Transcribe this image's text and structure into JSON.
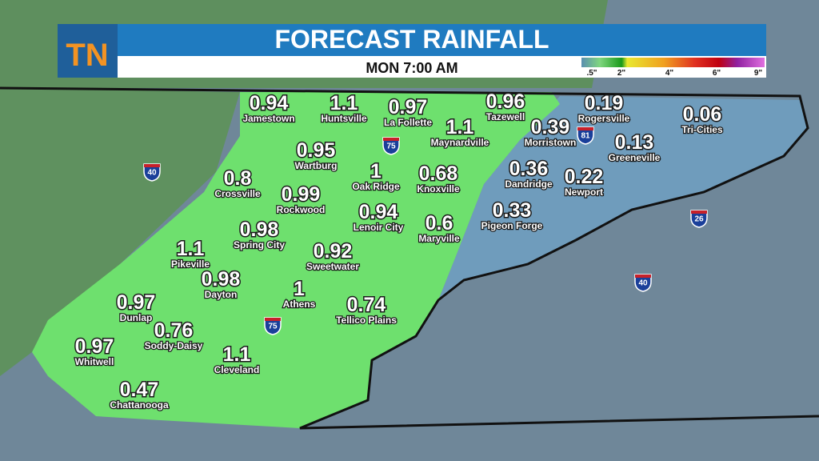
{
  "header": {
    "logo": "TN",
    "title": "FORECAST RAINFALL",
    "subtitle": "MON 7:00 AM"
  },
  "legend": {
    "labels": [
      ".5\"",
      "2\"",
      "4\"",
      "6\"",
      "9\""
    ]
  },
  "cities": [
    {
      "name": "Jamestown",
      "value": 0.94
    },
    {
      "name": "Huntsville",
      "value": 1.1
    },
    {
      "name": "La Follette",
      "value": 0.97
    },
    {
      "name": "Tazewell",
      "value": 0.96
    },
    {
      "name": "Rogersville",
      "value": 0.19
    },
    {
      "name": "Tri-Cities",
      "value": 0.06
    },
    {
      "name": "Maynardville",
      "value": 1.1
    },
    {
      "name": "Morristown",
      "value": 0.39
    },
    {
      "name": "Greeneville",
      "value": 0.13
    },
    {
      "name": "Wartburg",
      "value": 0.95
    },
    {
      "name": "Oak Ridge",
      "value": 1
    },
    {
      "name": "Knoxville",
      "value": 0.68
    },
    {
      "name": "Dandridge",
      "value": 0.36
    },
    {
      "name": "Newport",
      "value": 0.22
    },
    {
      "name": "Crossville",
      "value": 0.8
    },
    {
      "name": "Rockwood",
      "value": 0.99
    },
    {
      "name": "Lenoir City",
      "value": 0.94
    },
    {
      "name": "Maryville",
      "value": 0.6
    },
    {
      "name": "Pigeon Forge",
      "value": 0.33
    },
    {
      "name": "Spring City",
      "value": 0.98
    },
    {
      "name": "Sweetwater",
      "value": 0.92
    },
    {
      "name": "Pikeville",
      "value": 1.1
    },
    {
      "name": "Dayton",
      "value": 0.98
    },
    {
      "name": "Athens",
      "value": 1
    },
    {
      "name": "Tellico Plains",
      "value": 0.74
    },
    {
      "name": "Dunlap",
      "value": 0.97
    },
    {
      "name": "Soddy-Daisy",
      "value": 0.76
    },
    {
      "name": "Whitwell",
      "value": 0.97
    },
    {
      "name": "Cleveland",
      "value": 1.1
    },
    {
      "name": "Chattanooga",
      "value": 0.47
    }
  ],
  "interstates": [
    "75",
    "81",
    "40",
    "26",
    "40",
    "75"
  ]
}
